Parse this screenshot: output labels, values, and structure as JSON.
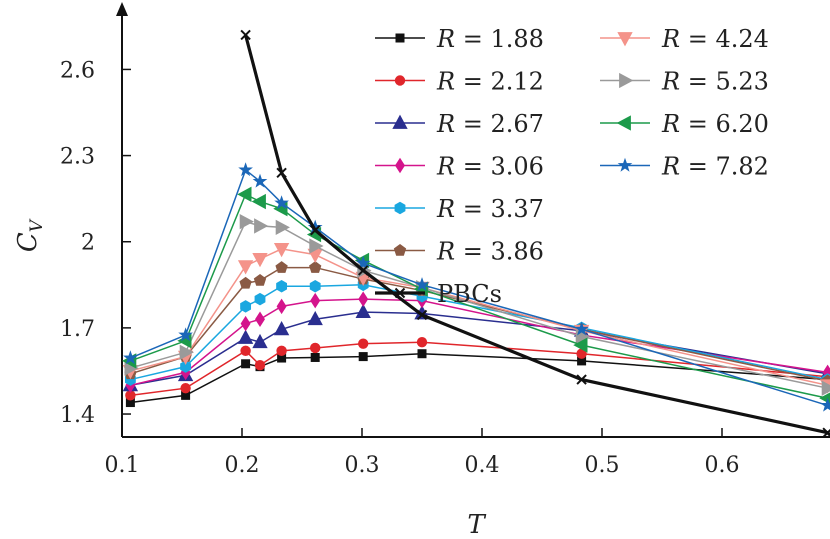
{
  "chart_data": {
    "type": "line",
    "title": "",
    "xlabel": "T",
    "ylabel": "C_V",
    "xlabel_display": "T",
    "ylabel_main": "C",
    "ylabel_sub": "V",
    "xlim": [
      0.1,
      0.69
    ],
    "ylim": [
      1.32,
      2.8
    ],
    "xticks": [
      0.1,
      0.2,
      0.3,
      0.4,
      0.5,
      0.6
    ],
    "xtick_labels": [
      "0.1",
      "0.2",
      "0.3",
      "0.4",
      "0.5",
      "0.6"
    ],
    "yticks": [
      1.4,
      1.7,
      2.0,
      2.3,
      2.6
    ],
    "ytick_labels": [
      "1.4",
      "1.7",
      "2",
      "2.3",
      "2.6"
    ],
    "grid": false,
    "legend_position": "top-right",
    "x": [
      0.107,
      0.153,
      0.203,
      0.215,
      0.233,
      0.261,
      0.301,
      0.35,
      0.483,
      0.688
    ],
    "series": [
      {
        "name": "R = 1.88",
        "label_var": "R",
        "label_val": "1.88",
        "color": "#111111",
        "marker": "square",
        "values": [
          1.44,
          1.465,
          1.575,
          1.565,
          1.595,
          1.597,
          1.6,
          1.61,
          1.585,
          1.52
        ]
      },
      {
        "name": "R = 2.12",
        "label_var": "R",
        "label_val": "2.12",
        "color": "#e0262b",
        "marker": "circle",
        "values": [
          1.465,
          1.49,
          1.62,
          1.57,
          1.62,
          1.63,
          1.645,
          1.65,
          1.61,
          1.53
        ]
      },
      {
        "name": "R = 2.67",
        "label_var": "R",
        "label_val": "2.67",
        "color": "#2a2e8f",
        "marker": "triangle-up",
        "values": [
          1.5,
          1.535,
          1.665,
          1.65,
          1.695,
          1.73,
          1.755,
          1.75,
          1.69,
          1.54
        ]
      },
      {
        "name": "R = 3.06",
        "label_var": "R",
        "label_val": "3.06",
        "color": "#d4148c",
        "marker": "diamond",
        "values": [
          1.5,
          1.545,
          1.715,
          1.73,
          1.775,
          1.795,
          1.8,
          1.795,
          1.675,
          1.545
        ]
      },
      {
        "name": "R = 3.37",
        "label_var": "R",
        "label_val": "3.37",
        "color": "#1aa7e0",
        "marker": "hexagon",
        "values": [
          1.52,
          1.565,
          1.775,
          1.8,
          1.845,
          1.845,
          1.85,
          1.81,
          1.7,
          1.52
        ]
      },
      {
        "name": "R = 3.86",
        "label_var": "R",
        "label_val": "3.86",
        "color": "#8a5a44",
        "marker": "pentagon",
        "values": [
          1.54,
          1.6,
          1.855,
          1.865,
          1.91,
          1.91,
          1.87,
          1.83,
          1.695,
          1.515
        ]
      },
      {
        "name": "R = 4.24",
        "label_var": "R",
        "label_val": "4.24",
        "color": "#f4938a",
        "marker": "triangle-down",
        "values": [
          1.55,
          1.6,
          1.915,
          1.94,
          1.975,
          1.955,
          1.875,
          1.84,
          1.69,
          1.5
        ]
      },
      {
        "name": "R = 5.23",
        "label_var": "R",
        "label_val": "5.23",
        "color": "#9a9a9a",
        "marker": "triangle-right",
        "values": [
          1.56,
          1.615,
          2.07,
          2.055,
          2.05,
          1.985,
          1.9,
          1.84,
          1.67,
          1.49
        ]
      },
      {
        "name": "R = 6.20",
        "label_var": "R",
        "label_val": "6.20",
        "color": "#1c9a4a",
        "marker": "triangle-left",
        "values": [
          1.585,
          1.655,
          2.165,
          2.14,
          2.115,
          2.025,
          1.935,
          1.835,
          1.64,
          1.455
        ]
      },
      {
        "name": "R = 7.82",
        "label_var": "R",
        "label_val": "7.82",
        "color": "#1b67b8",
        "marker": "star",
        "values": [
          1.595,
          1.675,
          2.25,
          2.21,
          2.135,
          2.05,
          1.925,
          1.85,
          1.695,
          1.43
        ]
      }
    ],
    "pbc_series": {
      "name": "PBCs",
      "color": "#111111",
      "marker": "x",
      "x": [
        0.203,
        0.233,
        0.261,
        0.301,
        0.35,
        0.483,
        0.688
      ],
      "values": [
        2.72,
        2.24,
        2.04,
        1.9,
        1.745,
        1.52,
        1.335
      ]
    },
    "legend_columns": [
      [
        "R = 1.88",
        "R = 2.12",
        "R = 2.67",
        "R = 3.06",
        "R = 3.37",
        "R = 3.86",
        "PBCs"
      ],
      [
        "R = 4.24",
        "R = 5.23",
        "R = 6.20",
        "R = 7.82"
      ]
    ]
  }
}
